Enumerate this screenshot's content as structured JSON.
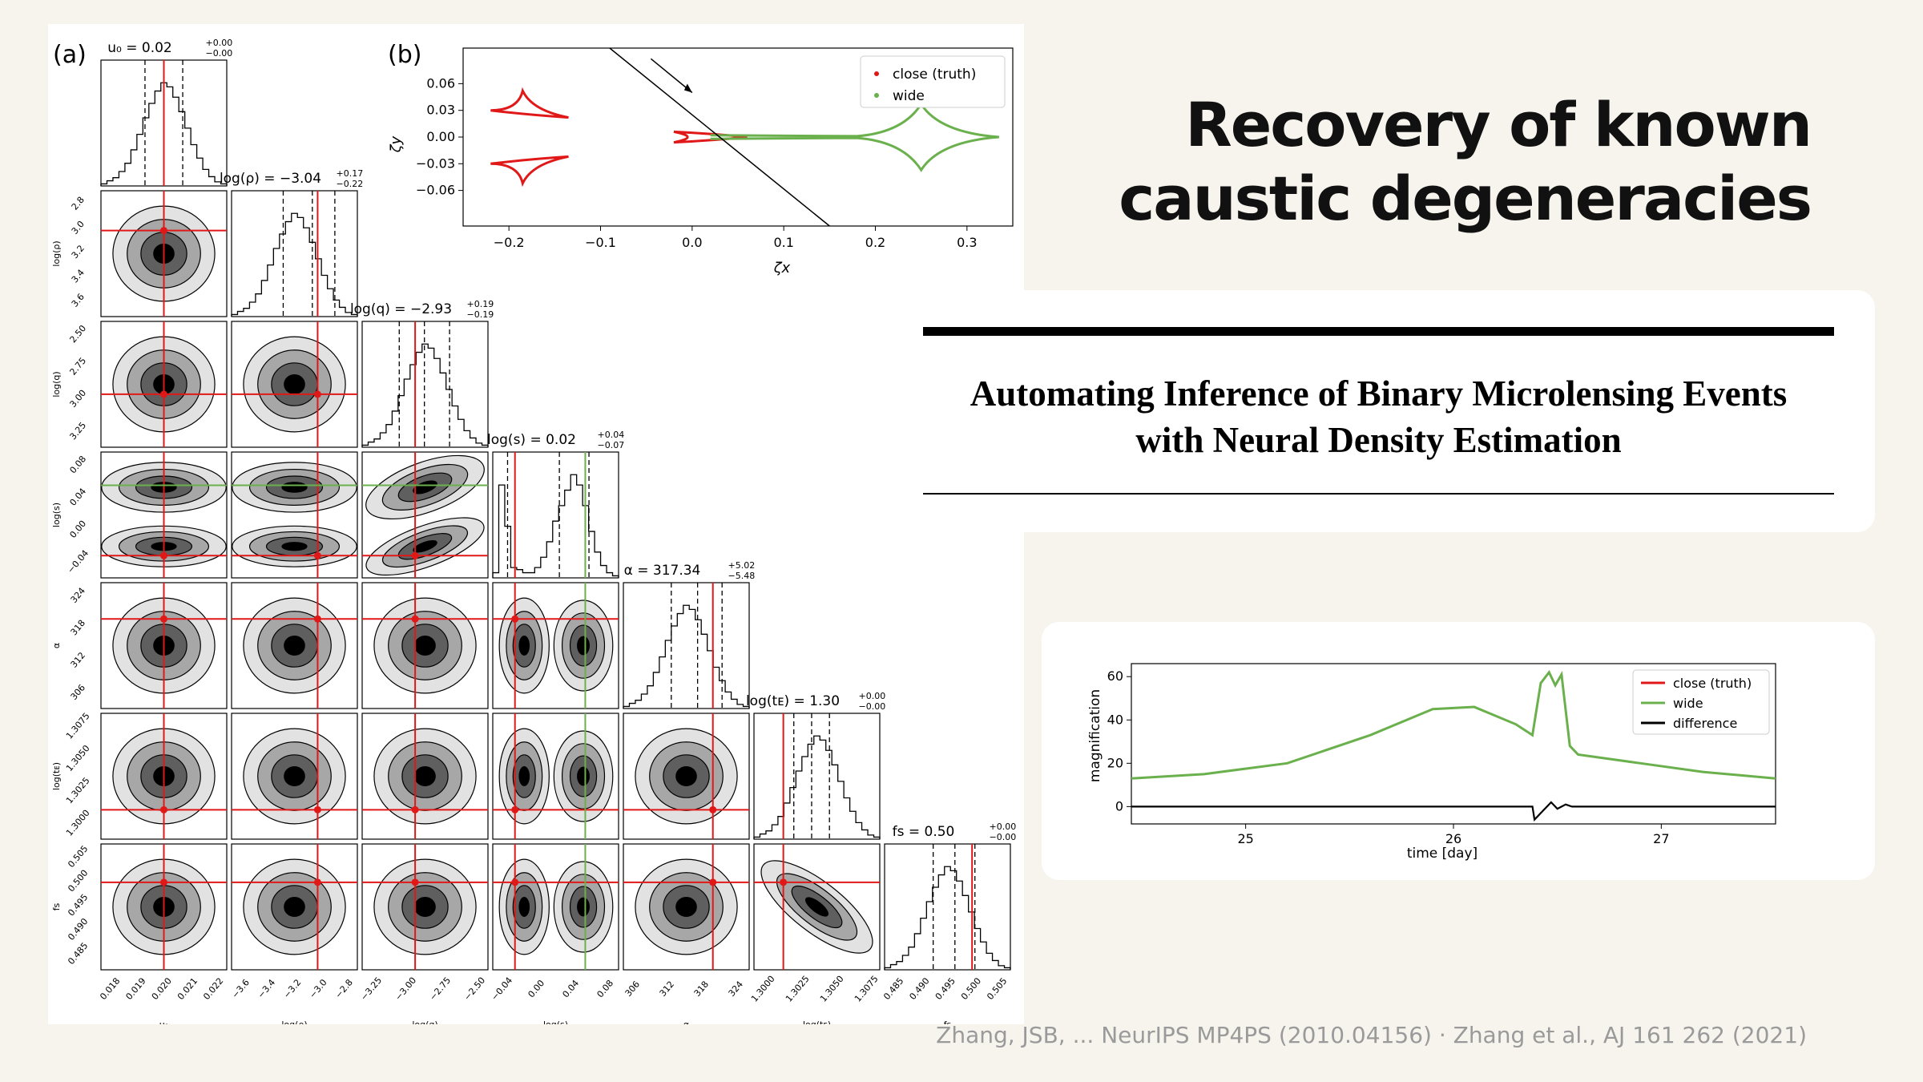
{
  "slide": {
    "title_line1": "Recovery of known",
    "title_line2": "caustic degeneracies",
    "paper_title_line1": "Automating Inference of Binary Microlensing Events",
    "paper_title_line2": "with Neural Density Estimation",
    "citation": "Zhang, JSB, ... NeurIPS MP4PS (2010.04156) · Zhang et al., AJ 161 262 (2021)"
  },
  "colors": {
    "truth": "#e01818",
    "wide": "#6ab04c",
    "diff": "#000000",
    "background": "#f7f4ee",
    "citation": "#9a9a9a"
  },
  "chart_data": [
    {
      "type": "corner",
      "panel_label": "(a)",
      "parameters": [
        {
          "axis": "u₀",
          "title": "u₀ = 0.02",
          "sup": "+0.00",
          "sub": "−0.00",
          "ticks": [
            "0.018",
            "0.019",
            "0.020",
            "0.021",
            "0.022"
          ],
          "range": [
            0.018,
            0.022
          ],
          "truth": 0.02,
          "median": 0.02,
          "q": [
            0.0194,
            0.0206
          ],
          "wide_truth": null
        },
        {
          "axis": "log(ρ)",
          "title": "log(ρ) = −3.04",
          "sup": "+0.17",
          "sub": "−0.22",
          "ticks": [
            "−3.6",
            "−3.4",
            "−3.2",
            "−3.0",
            "−2.8"
          ],
          "range": [
            -3.65,
            -2.7
          ],
          "truth": -3.0,
          "median": -3.04,
          "q": [
            -3.26,
            -2.87
          ],
          "wide_truth": null
        },
        {
          "axis": "log(q)",
          "title": "log(q) = −2.93",
          "sup": "+0.19",
          "sub": "−0.19",
          "ticks": [
            "−3.25",
            "−3.00",
            "−2.75",
            "−2.50"
          ],
          "range": [
            -3.4,
            -2.45
          ],
          "truth": -3.0,
          "median": -2.93,
          "q": [
            -3.12,
            -2.74
          ],
          "wide_truth": null
        },
        {
          "axis": "log(s)",
          "title": "log(s) = 0.02",
          "sup": "+0.04",
          "sub": "−0.07",
          "ticks": [
            "−0.04",
            "0.00",
            "0.04",
            "0.08"
          ],
          "range": [
            -0.07,
            0.1
          ],
          "truth": -0.04,
          "median": 0.02,
          "q": [
            -0.05,
            0.06
          ],
          "wide_truth": 0.055
        },
        {
          "axis": "α",
          "title": "α = 317.34",
          "sup": "+5.02",
          "sub": "−5.48",
          "ticks": [
            "306",
            "312",
            "318",
            "324"
          ],
          "range": [
            302,
            328
          ],
          "truth": 320.5,
          "median": 317.34,
          "q": [
            311.9,
            322.4
          ],
          "wide_truth": null
        },
        {
          "axis": "log(tᴇ)",
          "title": "log(tᴇ) = 1.30",
          "sup": "+0.00",
          "sub": "−0.00",
          "ticks": [
            "1.3000",
            "1.3025",
            "1.3050",
            "1.3075"
          ],
          "range": [
            1.298,
            1.31
          ],
          "truth": 1.3008,
          "median": 1.3035,
          "q": [
            1.3018,
            1.3052
          ],
          "wide_truth": null
        },
        {
          "axis": "fs",
          "title": "fs = 0.50",
          "sup": "+0.00",
          "sub": "−0.00",
          "ticks": [
            "0.485",
            "0.490",
            "0.495",
            "0.500",
            "0.505"
          ],
          "range": [
            0.485,
            0.507
          ],
          "truth": 0.5003,
          "median": 0.4973,
          "q": [
            0.4935,
            0.5008
          ],
          "wide_truth": null
        }
      ],
      "ytick_labels": [
        [
          "2.8",
          "3.0",
          "3.2",
          "3.4",
          "3.6"
        ],
        [
          "2.50",
          "2.75",
          "3.00",
          "3.25"
        ],
        [
          "0.08",
          "0.04",
          "0.00",
          "−0.04"
        ],
        [
          "324",
          "318",
          "312",
          "306"
        ],
        [
          "1.3075",
          "1.3050",
          "1.3025",
          "1.3000"
        ],
        [
          "0.505",
          "0.500",
          "0.495",
          "0.490",
          "0.485"
        ]
      ]
    },
    {
      "type": "line",
      "panel_label": "(b)",
      "xlabel": "ζx",
      "ylabel": "ζy",
      "xlim": [
        -0.25,
        0.35
      ],
      "ylim": [
        -0.1,
        0.1
      ],
      "xticks": [
        -0.2,
        -0.1,
        0.0,
        0.1,
        0.2,
        0.3
      ],
      "xtick_labels": [
        "−0.2",
        "−0.1",
        "0.0",
        "0.1",
        "0.2",
        "0.3"
      ],
      "yticks": [
        0.06,
        0.03,
        0.0,
        -0.03,
        -0.06
      ],
      "ytick_labels": [
        "0.06",
        "0.03",
        "0.00",
        "−0.03",
        "−0.06"
      ],
      "legend": [
        {
          "name": "close (truth)",
          "color": "#e01818"
        },
        {
          "name": "wide",
          "color": "#6ab04c"
        }
      ],
      "legend_position": "top-right",
      "trajectory": [
        [
          -0.09,
          0.1
        ],
        [
          0.15,
          -0.1
        ]
      ]
    },
    {
      "type": "line",
      "xlabel": "time [day]",
      "ylabel": "magnification",
      "xlim": [
        24.45,
        27.55
      ],
      "ylim": [
        -8,
        66
      ],
      "xticks": [
        25,
        26,
        27
      ],
      "xtick_labels": [
        "25",
        "26",
        "27"
      ],
      "yticks": [
        0,
        20,
        40,
        60
      ],
      "ytick_labels": [
        "0",
        "20",
        "40",
        "60"
      ],
      "legend_position": "top-right",
      "series": [
        {
          "name": "close (truth)",
          "color": "#e01818",
          "x": [
            24.45,
            24.8,
            25.2,
            25.6,
            25.9,
            26.1,
            26.3,
            26.38,
            26.42,
            26.46,
            26.49,
            26.52,
            26.56,
            26.6,
            26.9,
            27.2,
            27.55
          ],
          "y": [
            13,
            15,
            20,
            33,
            45,
            46,
            38,
            33,
            57,
            62,
            56,
            61,
            28,
            24,
            20,
            16,
            13
          ]
        },
        {
          "name": "wide",
          "color": "#6ab04c",
          "x": [
            24.45,
            24.8,
            25.2,
            25.6,
            25.9,
            26.1,
            26.3,
            26.38,
            26.42,
            26.46,
            26.49,
            26.52,
            26.56,
            26.6,
            26.9,
            27.2,
            27.55
          ],
          "y": [
            13,
            15,
            20,
            33,
            45,
            46,
            38,
            33,
            57,
            62,
            56,
            61,
            28,
            24,
            20,
            16,
            13
          ]
        },
        {
          "name": "difference",
          "color": "#000000",
          "x": [
            24.45,
            26.38,
            26.39,
            26.43,
            26.47,
            26.5,
            26.54,
            26.57,
            27.55
          ],
          "y": [
            0,
            0,
            -6,
            -2,
            2,
            -1,
            1,
            0,
            0
          ]
        }
      ]
    }
  ]
}
